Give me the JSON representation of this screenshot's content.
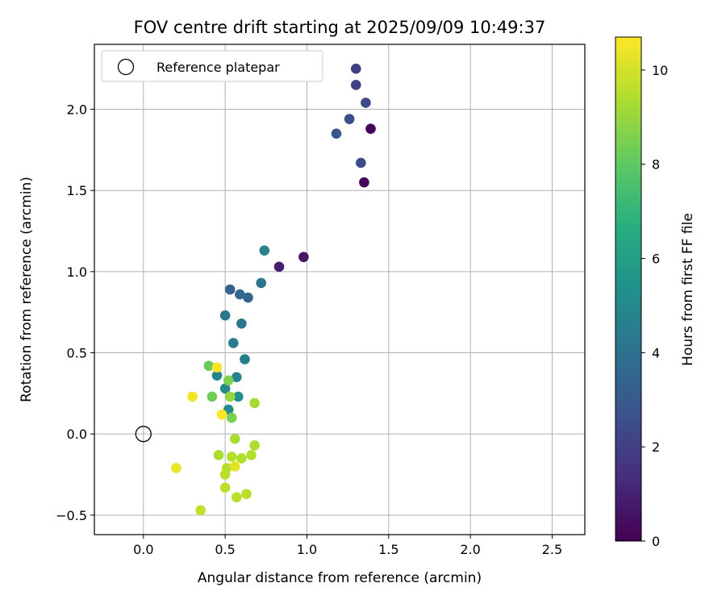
{
  "chart_data": {
    "type": "scatter",
    "title": "FOV centre drift starting at 2025/09/09 10:49:37",
    "xlabel": "Angular distance from reference (arcmin)",
    "ylabel": "Rotation from reference (arcmin)",
    "xlim": [
      -0.3,
      2.7
    ],
    "ylim": [
      -0.62,
      2.4
    ],
    "xticks": [
      0.0,
      0.5,
      1.0,
      1.5,
      2.0,
      2.5
    ],
    "xtick_labels": [
      "0.0",
      "0.5",
      "1.0",
      "1.5",
      "2.0",
      "2.5"
    ],
    "yticks": [
      -0.5,
      0.0,
      0.5,
      1.0,
      1.5,
      2.0
    ],
    "ytick_labels": [
      "−0.5",
      "0.0",
      "0.5",
      "1.0",
      "1.5",
      "2.0"
    ],
    "grid": true,
    "legend": {
      "position": "top-left",
      "entries": [
        "Reference platepar"
      ]
    },
    "reference_point": {
      "x": 0.0,
      "y": 0.0,
      "marker": "open-circle",
      "label": "Reference platepar"
    },
    "colorbar": {
      "label": "Hours from first FF file",
      "colormap": "viridis",
      "range": [
        0,
        10.7
      ],
      "ticks": [
        0,
        2,
        4,
        6,
        8,
        10
      ],
      "tick_labels": [
        "0",
        "2",
        "4",
        "6",
        "8",
        "10"
      ]
    },
    "points": [
      {
        "x": 1.39,
        "y": 1.88,
        "c": 0.1
      },
      {
        "x": 1.35,
        "y": 1.55,
        "c": 0.2
      },
      {
        "x": 0.98,
        "y": 1.09,
        "c": 0.6
      },
      {
        "x": 0.83,
        "y": 1.03,
        "c": 0.9
      },
      {
        "x": 1.3,
        "y": 2.25,
        "c": 2.0
      },
      {
        "x": 1.3,
        "y": 2.15,
        "c": 2.1
      },
      {
        "x": 1.36,
        "y": 2.04,
        "c": 2.4
      },
      {
        "x": 1.26,
        "y": 1.94,
        "c": 2.6
      },
      {
        "x": 1.33,
        "y": 1.67,
        "c": 2.5
      },
      {
        "x": 1.18,
        "y": 1.85,
        "c": 2.9
      },
      {
        "x": 0.53,
        "y": 0.89,
        "c": 3.3
      },
      {
        "x": 0.64,
        "y": 0.84,
        "c": 3.5
      },
      {
        "x": 0.59,
        "y": 0.86,
        "c": 3.6
      },
      {
        "x": 0.72,
        "y": 0.93,
        "c": 4.1
      },
      {
        "x": 0.5,
        "y": 0.73,
        "c": 4.2
      },
      {
        "x": 0.6,
        "y": 0.68,
        "c": 4.2
      },
      {
        "x": 0.55,
        "y": 0.56,
        "c": 4.5
      },
      {
        "x": 0.74,
        "y": 1.13,
        "c": 4.7
      },
      {
        "x": 0.62,
        "y": 0.46,
        "c": 4.6
      },
      {
        "x": 0.45,
        "y": 0.36,
        "c": 4.9
      },
      {
        "x": 0.57,
        "y": 0.35,
        "c": 4.8
      },
      {
        "x": 0.5,
        "y": 0.28,
        "c": 5.1
      },
      {
        "x": 0.58,
        "y": 0.23,
        "c": 5.3
      },
      {
        "x": 0.52,
        "y": 0.15,
        "c": 5.2
      },
      {
        "x": 0.4,
        "y": 0.42,
        "c": 8.2
      },
      {
        "x": 0.42,
        "y": 0.23,
        "c": 8.3
      },
      {
        "x": 0.52,
        "y": 0.33,
        "c": 8.6
      },
      {
        "x": 0.54,
        "y": 0.1,
        "c": 8.5
      },
      {
        "x": 0.53,
        "y": 0.23,
        "c": 9.0
      },
      {
        "x": 0.68,
        "y": 0.19,
        "c": 9.3
      },
      {
        "x": 0.56,
        "y": -0.03,
        "c": 9.3
      },
      {
        "x": 0.68,
        "y": -0.07,
        "c": 9.4
      },
      {
        "x": 0.46,
        "y": -0.13,
        "c": 9.4
      },
      {
        "x": 0.54,
        "y": -0.14,
        "c": 9.5
      },
      {
        "x": 0.6,
        "y": -0.15,
        "c": 9.5
      },
      {
        "x": 0.66,
        "y": -0.13,
        "c": 9.5
      },
      {
        "x": 0.51,
        "y": -0.21,
        "c": 9.6
      },
      {
        "x": 0.5,
        "y": -0.25,
        "c": 9.6
      },
      {
        "x": 0.5,
        "y": -0.33,
        "c": 9.6
      },
      {
        "x": 0.57,
        "y": -0.39,
        "c": 9.6
      },
      {
        "x": 0.63,
        "y": -0.37,
        "c": 9.6
      },
      {
        "x": 0.35,
        "y": -0.47,
        "c": 9.7
      },
      {
        "x": 0.56,
        "y": -0.2,
        "c": 10.3
      },
      {
        "x": 0.2,
        "y": -0.21,
        "c": 10.4
      },
      {
        "x": 0.3,
        "y": 0.23,
        "c": 10.5
      },
      {
        "x": 0.45,
        "y": 0.41,
        "c": 10.6
      },
      {
        "x": 0.48,
        "y": 0.12,
        "c": 10.7
      }
    ]
  }
}
